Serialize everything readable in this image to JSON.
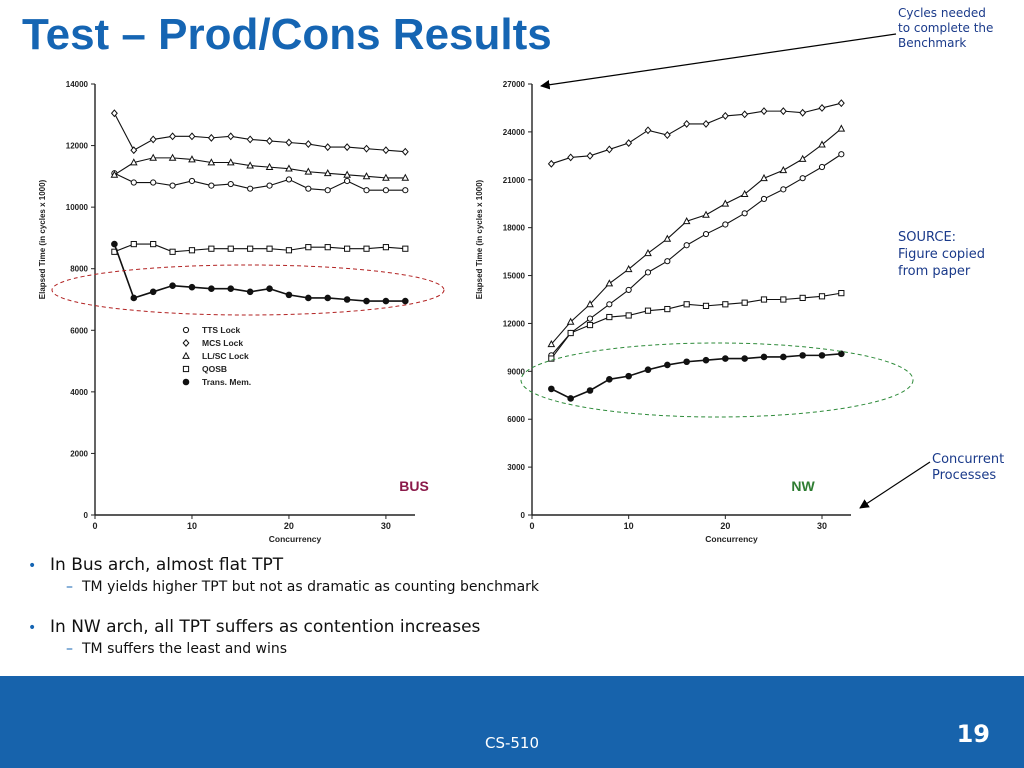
{
  "title": "Test – Prod/Cons Results",
  "notes": {
    "cycles": [
      "Cycles needed",
      "to complete the",
      "Benchmark"
    ],
    "source": [
      "SOURCE:",
      "Figure copied",
      "from paper"
    ],
    "concurrent": [
      "Concurrent",
      "Processes"
    ]
  },
  "bullets": [
    {
      "text": "In Bus arch, almost flat TPT",
      "sub": "TM yields higher TPT but not as dramatic as counting benchmark"
    },
    {
      "text": "In NW arch, all TPT suffers as contention increases",
      "sub": "TM suffers the least and wins"
    }
  ],
  "footer": {
    "course": "CS-510",
    "page": "19"
  },
  "colors": {
    "accent": "#1565b3",
    "footer": "#1763ac",
    "bus_label": "#8b1a4a",
    "nw_label": "#2e7d32",
    "bus_ellipse": "#b22222",
    "nw_ellipse": "#2e8b3a"
  },
  "chart_data": [
    {
      "type": "line",
      "tag": "BUS",
      "xlabel": "Concurrency",
      "ylabel": "Elapsed Time (in cycles x 1000)",
      "xlim": [
        0,
        33
      ],
      "ylim": [
        0,
        14000
      ],
      "xticks": [
        0,
        10,
        20,
        30
      ],
      "yticks": [
        0,
        2000,
        4000,
        6000,
        8000,
        10000,
        12000,
        14000
      ],
      "legend_position": "middle-left",
      "highlight": "Trans. Mem.",
      "series": [
        {
          "name": "TTS Lock",
          "marker": "circle-open",
          "x": [
            2,
            4,
            6,
            8,
            10,
            12,
            14,
            16,
            18,
            20,
            22,
            24,
            26,
            28,
            30,
            32
          ],
          "values": [
            11100,
            10800,
            10800,
            10700,
            10850,
            10700,
            10750,
            10600,
            10700,
            10900,
            10600,
            10550,
            10850,
            10550,
            10550,
            10550
          ]
        },
        {
          "name": "MCS Lock",
          "marker": "diamond-open",
          "x": [
            2,
            4,
            6,
            8,
            10,
            12,
            14,
            16,
            18,
            20,
            22,
            24,
            26,
            28,
            30,
            32
          ],
          "values": [
            13050,
            11850,
            12200,
            12300,
            12300,
            12250,
            12300,
            12200,
            12150,
            12100,
            12050,
            11950,
            11950,
            11900,
            11850,
            11800
          ]
        },
        {
          "name": "LL/SC Lock",
          "marker": "triangle-open",
          "x": [
            2,
            4,
            6,
            8,
            10,
            12,
            14,
            16,
            18,
            20,
            22,
            24,
            26,
            28,
            30,
            32
          ],
          "values": [
            11050,
            11450,
            11600,
            11600,
            11550,
            11450,
            11450,
            11350,
            11300,
            11250,
            11150,
            11100,
            11050,
            11000,
            10950,
            10950
          ]
        },
        {
          "name": "QOSB",
          "marker": "square-open",
          "x": [
            2,
            4,
            6,
            8,
            10,
            12,
            14,
            16,
            18,
            20,
            22,
            24,
            26,
            28,
            30,
            32
          ],
          "values": [
            8550,
            8800,
            8800,
            8550,
            8600,
            8650,
            8650,
            8650,
            8650,
            8600,
            8700,
            8700,
            8650,
            8650,
            8700,
            8650
          ]
        },
        {
          "name": "Trans. Mem.",
          "marker": "circle-filled",
          "x": [
            2,
            4,
            6,
            8,
            10,
            12,
            14,
            16,
            18,
            20,
            22,
            24,
            26,
            28,
            30,
            32
          ],
          "values": [
            8800,
            7050,
            7250,
            7450,
            7400,
            7350,
            7350,
            7250,
            7350,
            7150,
            7050,
            7050,
            7000,
            6950,
            6950,
            6950
          ]
        }
      ]
    },
    {
      "type": "line",
      "tag": "NW",
      "xlabel": "Concurrency",
      "ylabel": "Elapsed Time (in cycles x 1000)",
      "xlim": [
        0,
        33
      ],
      "ylim": [
        0,
        27000
      ],
      "xticks": [
        0,
        10,
        20,
        30
      ],
      "yticks": [
        0,
        3000,
        6000,
        9000,
        12000,
        15000,
        18000,
        21000,
        24000,
        27000
      ],
      "highlight": "Trans. Mem.",
      "series": [
        {
          "name": "TTS Lock",
          "marker": "circle-open",
          "x": [
            2,
            4,
            6,
            8,
            10,
            12,
            14,
            16,
            18,
            20,
            22,
            24,
            26,
            28,
            30,
            32
          ],
          "values": [
            10000,
            11400,
            12300,
            13200,
            14100,
            15200,
            15900,
            16900,
            17600,
            18200,
            18900,
            19800,
            20400,
            21100,
            21800,
            22600
          ]
        },
        {
          "name": "MCS Lock",
          "marker": "diamond-open",
          "x": [
            2,
            4,
            6,
            8,
            10,
            12,
            14,
            16,
            18,
            20,
            22,
            24,
            26,
            28,
            30,
            32
          ],
          "values": [
            22000,
            22400,
            22500,
            22900,
            23300,
            24100,
            23800,
            24500,
            24500,
            25000,
            25100,
            25300,
            25300,
            25200,
            25500,
            25800
          ]
        },
        {
          "name": "LL/SC Lock",
          "marker": "triangle-open",
          "x": [
            2,
            4,
            6,
            8,
            10,
            12,
            14,
            16,
            18,
            20,
            22,
            24,
            26,
            28,
            30,
            32
          ],
          "values": [
            10700,
            12100,
            13200,
            14500,
            15400,
            16400,
            17300,
            18400,
            18800,
            19500,
            20100,
            21100,
            21600,
            22300,
            23200,
            24200
          ]
        },
        {
          "name": "QOSB",
          "marker": "square-open",
          "x": [
            2,
            4,
            6,
            8,
            10,
            12,
            14,
            16,
            18,
            20,
            22,
            24,
            26,
            28,
            30,
            32
          ],
          "values": [
            9800,
            11400,
            11900,
            12400,
            12500,
            12800,
            12900,
            13200,
            13100,
            13200,
            13300,
            13500,
            13500,
            13600,
            13700,
            13900
          ]
        },
        {
          "name": "Trans. Mem.",
          "marker": "circle-filled",
          "x": [
            2,
            4,
            6,
            8,
            10,
            12,
            14,
            16,
            18,
            20,
            22,
            24,
            26,
            28,
            30,
            32
          ],
          "values": [
            7900,
            7300,
            7800,
            8500,
            8700,
            9100,
            9400,
            9600,
            9700,
            9800,
            9800,
            9900,
            9900,
            10000,
            10000,
            10100
          ]
        }
      ]
    }
  ]
}
